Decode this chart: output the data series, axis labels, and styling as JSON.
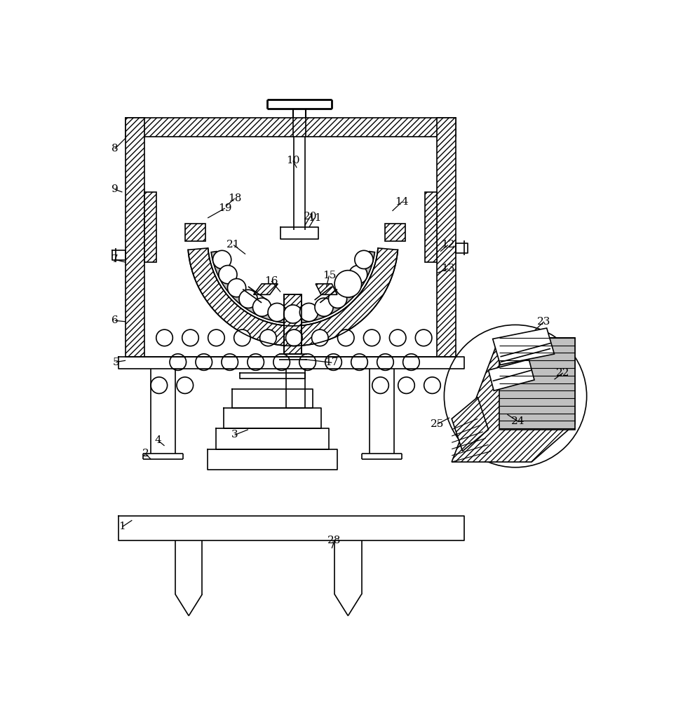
{
  "bg": "#ffffff",
  "lc": "#000000",
  "lw": 1.2,
  "fs": 11
}
